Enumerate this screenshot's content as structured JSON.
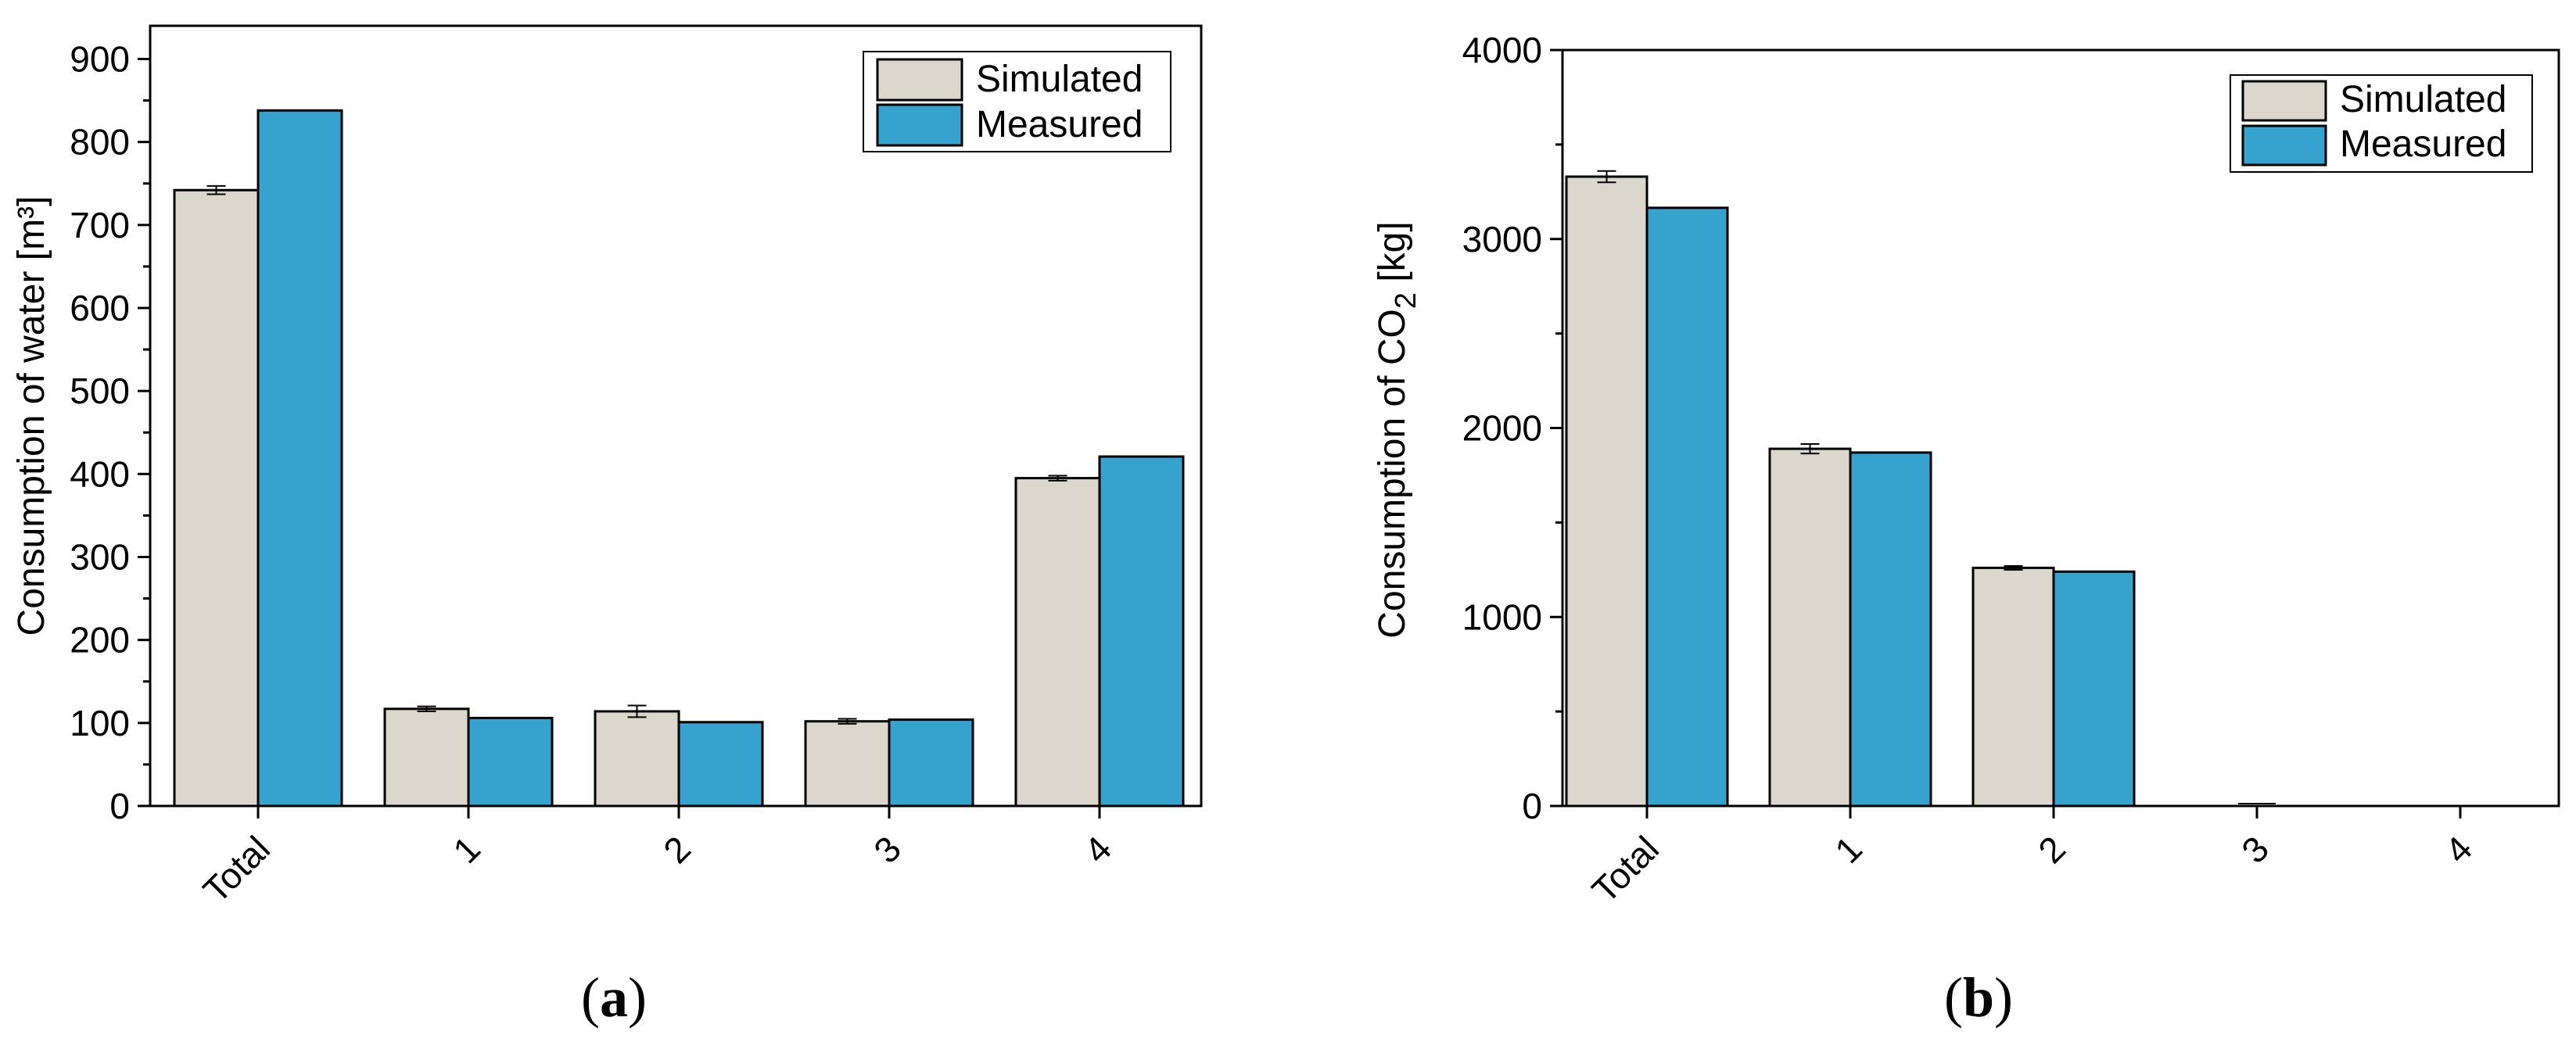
{
  "chart_data": [
    {
      "type": "bar",
      "panel": "a",
      "panel_label": "a",
      "categories": [
        "Total",
        "1",
        "2",
        "3",
        "4"
      ],
      "series": [
        {
          "name": "Simulated",
          "color": "#dbd7cc",
          "values": [
            742,
            117,
            114,
            102,
            395
          ],
          "errors": [
            5,
            3,
            7,
            3,
            3
          ]
        },
        {
          "name": "Measured",
          "color": "#35a3cd",
          "values": [
            838,
            106,
            101,
            104,
            421
          ],
          "errors": [
            0,
            0,
            0,
            0,
            0
          ]
        }
      ],
      "ylabel": "Consumption of water [m³]",
      "ylim": [
        0,
        940
      ],
      "yticks": [
        0,
        100,
        200,
        300,
        400,
        500,
        600,
        700,
        800,
        900
      ],
      "legend": "top-right"
    },
    {
      "type": "bar",
      "panel": "b",
      "panel_label": "b",
      "categories": [
        "Total",
        "1",
        "2",
        "3",
        "4"
      ],
      "series": [
        {
          "name": "Simulated",
          "color": "#dbd7cc",
          "values": [
            3330,
            1890,
            1260,
            0,
            0
          ],
          "errors": [
            30,
            25,
            10,
            0,
            0
          ]
        },
        {
          "name": "Measured",
          "color": "#35a3cd",
          "values": [
            3165,
            1870,
            1240,
            0,
            0
          ],
          "errors": [
            0,
            0,
            0,
            0,
            0
          ]
        }
      ],
      "ylabel_prefix": "Consumption of CO",
      "ylabel_sub": "2",
      "ylabel_suffix": " [kg]",
      "ylim": [
        0,
        4000
      ],
      "yticks": [
        0,
        1000,
        2000,
        3000,
        4000
      ],
      "legend": "top-right"
    }
  ]
}
